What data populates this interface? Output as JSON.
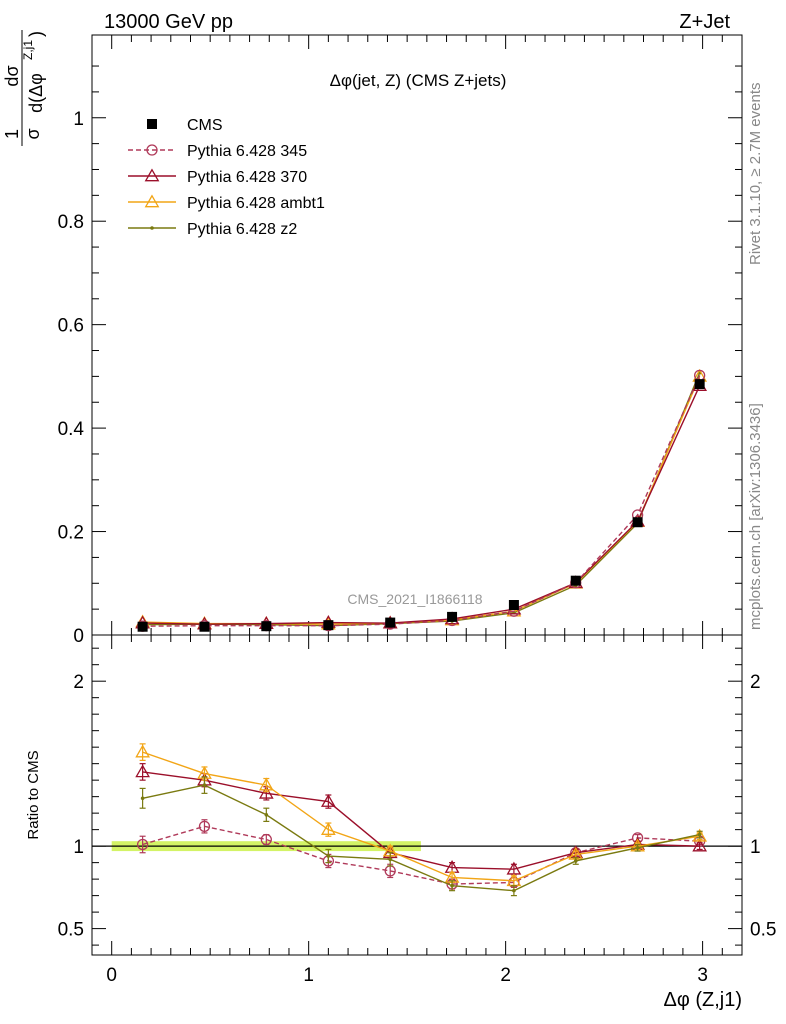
{
  "header": {
    "left": "13000 GeV pp",
    "right": "Z+Jet"
  },
  "side_text": {
    "rivet": "Rivet 3.1.10, ≥ 2.7M events",
    "mcplots": "mcplots.cern.ch [arXiv:1306.3436]"
  },
  "chart_data": [
    {
      "type": "line",
      "title": "Δφ(jet, Z) (CMS Z+jets)",
      "watermark": "CMS_2021_I1866118",
      "ylabel_num": "1",
      "ylabel_den": "σ",
      "ylabel_d_num": "dσ",
      "ylabel_d_den": "d(Δφ",
      "ylabel_sup": "Z,j1",
      "ylabel_close": ")",
      "xlim": [
        -0.1,
        3.2
      ],
      "ylim": [
        0,
        1.16
      ],
      "yticks": [
        0,
        0.2,
        0.4,
        0.6,
        0.8,
        1
      ],
      "ytick_labels": [
        "0",
        "0.2",
        "0.4",
        "0.6",
        "0.8",
        "1"
      ],
      "x": [
        0.157,
        0.471,
        0.785,
        1.1,
        1.414,
        1.728,
        2.042,
        2.356,
        2.67,
        2.985
      ],
      "series": [
        {
          "name": "CMS",
          "color": "#000000",
          "marker": "square",
          "dash": "none",
          "values": [
            0.016,
            0.016,
            0.017,
            0.019,
            0.024,
            0.035,
            0.058,
            0.105,
            0.218,
            0.485
          ]
        },
        {
          "name": "Pythia 6.428 345",
          "color": "#b03a5a",
          "marker": "circle-open",
          "dash": "dashed",
          "values": [
            0.017,
            0.018,
            0.018,
            0.018,
            0.021,
            0.028,
            0.046,
            0.101,
            0.232,
            0.502
          ]
        },
        {
          "name": "Pythia 6.428 370",
          "color": "#9b0f2a",
          "marker": "triangle-open",
          "dash": "none",
          "values": [
            0.023,
            0.021,
            0.022,
            0.024,
            0.023,
            0.031,
            0.05,
            0.101,
            0.22,
            0.482
          ]
        },
        {
          "name": "Pythia 6.428 ambt1",
          "color": "#f2a516",
          "marker": "triangle-open",
          "dash": "none",
          "values": [
            0.025,
            0.022,
            0.022,
            0.021,
            0.023,
            0.029,
            0.046,
            0.1,
            0.219,
            0.5
          ]
        },
        {
          "name": "Pythia 6.428 z2",
          "color": "#7a7a10",
          "marker": "dot",
          "dash": "none",
          "values": [
            0.02,
            0.021,
            0.02,
            0.018,
            0.022,
            0.027,
            0.043,
            0.096,
            0.216,
            0.507
          ]
        }
      ]
    },
    {
      "type": "line",
      "xlabel": "Δφ (Z,j1)",
      "ylabel": "Ratio to CMS",
      "xlim": [
        -0.1,
        3.2
      ],
      "ylim": [
        0.34,
        2.28
      ],
      "xticks": [
        0,
        1,
        2,
        3
      ],
      "xtick_labels": [
        "0",
        "1",
        "2",
        "3"
      ],
      "yticks": [
        0.5,
        1,
        2
      ],
      "ytick_labels": [
        "0.5",
        "1",
        "2"
      ],
      "reference_band": {
        "low": 0.97,
        "high": 1.03,
        "x_to": 1.57,
        "color": "#c8f040"
      },
      "x": [
        0.157,
        0.471,
        0.785,
        1.1,
        1.414,
        1.728,
        2.042,
        2.356,
        2.67,
        2.985
      ],
      "series": [
        {
          "name": "Pythia 6.428 345",
          "color": "#b03a5a",
          "marker": "circle-open",
          "dash": "dashed",
          "values": [
            1.01,
            1.12,
            1.04,
            0.91,
            0.85,
            0.77,
            0.78,
            0.96,
            1.05,
            1.03
          ],
          "errors": [
            0.05,
            0.04,
            0.03,
            0.04,
            0.04,
            0.03,
            0.03,
            0.02,
            0.02,
            0.02
          ]
        },
        {
          "name": "Pythia 6.428 370",
          "color": "#9b0f2a",
          "marker": "triangle-open",
          "dash": "none",
          "values": [
            1.45,
            1.4,
            1.32,
            1.27,
            0.96,
            0.87,
            0.86,
            0.96,
            1.01,
            1.0
          ],
          "errors": [
            0.05,
            0.04,
            0.04,
            0.04,
            0.03,
            0.03,
            0.03,
            0.02,
            0.02,
            0.02
          ]
        },
        {
          "name": "Pythia 6.428 ambt1",
          "color": "#f2a516",
          "marker": "triangle-open",
          "dash": "none",
          "values": [
            1.57,
            1.44,
            1.37,
            1.1,
            0.97,
            0.81,
            0.79,
            0.95,
            1.0,
            1.06
          ],
          "errors": [
            0.05,
            0.04,
            0.04,
            0.04,
            0.03,
            0.03,
            0.03,
            0.02,
            0.02,
            0.02
          ]
        },
        {
          "name": "Pythia 6.428 z2",
          "color": "#7a7a10",
          "marker": "dot",
          "dash": "none",
          "values": [
            1.29,
            1.37,
            1.19,
            0.94,
            0.92,
            0.76,
            0.73,
            0.91,
            0.99,
            1.07
          ],
          "errors": [
            0.06,
            0.05,
            0.04,
            0.04,
            0.04,
            0.03,
            0.03,
            0.02,
            0.02,
            0.02
          ]
        }
      ]
    }
  ]
}
